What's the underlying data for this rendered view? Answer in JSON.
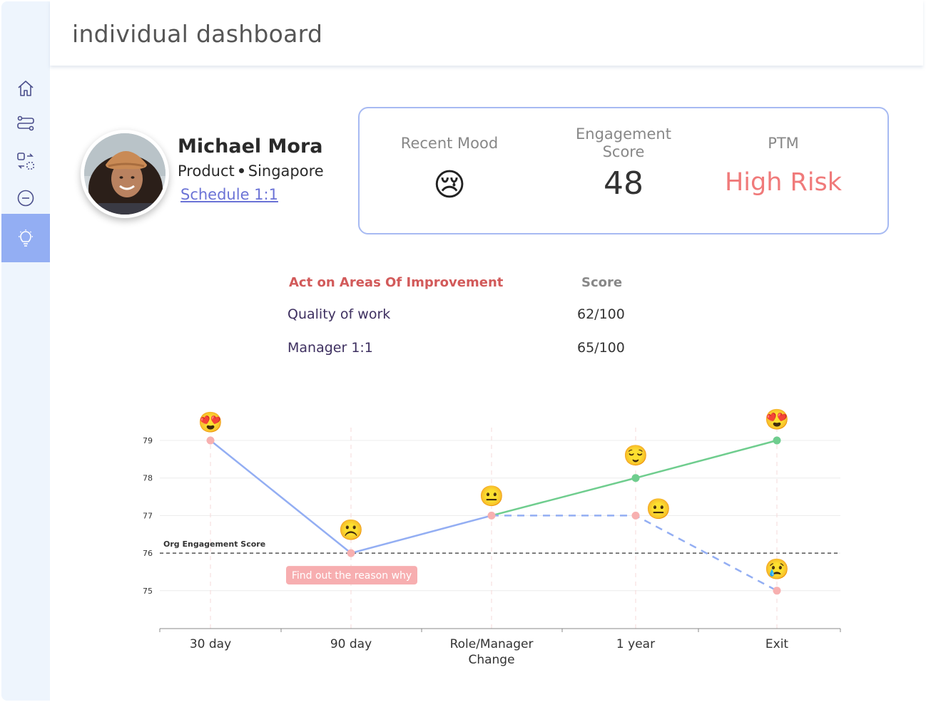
{
  "header": {
    "title": "individual dashboard"
  },
  "sidebar": {
    "items": [
      {
        "icon": "home-icon"
      },
      {
        "icon": "flow-icon"
      },
      {
        "icon": "swap-icon"
      },
      {
        "icon": "minus-circle-icon"
      },
      {
        "icon": "lightbulb-icon",
        "active": true
      }
    ]
  },
  "profile": {
    "name": "Michael Mora",
    "department": "Product",
    "location": "Singapore",
    "schedule_link": "Schedule 1:1"
  },
  "stats": {
    "recent_mood_label": "Recent Mood",
    "recent_mood_emoji": "😢",
    "engagement_label_line1": "Engagement",
    "engagement_label_line2": "Score",
    "engagement_value": "48",
    "ptm_label": "PTM",
    "ptm_value": "High Risk",
    "ptm_color": "#f07a7a"
  },
  "improvement": {
    "header_area": "Act on Areas Of Improvement",
    "header_score": "Score",
    "rows": [
      {
        "area": "Quality of work",
        "score": "62/100"
      },
      {
        "area": "Manager 1:1",
        "score": "65/100"
      }
    ]
  },
  "chart_data": {
    "type": "line",
    "categories": [
      "30 day",
      "90 day",
      "Role/Manager Change",
      "1 year",
      "Exit"
    ],
    "ylim": [
      74,
      80
    ],
    "yticks": [
      75,
      76,
      77,
      78,
      79
    ],
    "reference_line": {
      "label": "Org Engagement Score",
      "value": 76
    },
    "series": [
      {
        "style": "solid",
        "color": "#93aef3",
        "points": [
          [
            0,
            79
          ],
          [
            1,
            76
          ],
          [
            2,
            77
          ]
        ]
      },
      {
        "style": "solid",
        "color": "#6fcd8e",
        "points": [
          [
            2,
            77
          ],
          [
            3,
            78
          ],
          [
            4,
            79
          ]
        ]
      },
      {
        "style": "dashed",
        "color": "#93aef3",
        "points": [
          [
            2,
            77
          ],
          [
            3,
            77
          ],
          [
            4,
            75
          ]
        ]
      }
    ],
    "markers": [
      {
        "x": 0,
        "y": 79,
        "color": "#f7b0b0",
        "emoji": "😍"
      },
      {
        "x": 1,
        "y": 76,
        "color": "#f7b0b0",
        "emoji": "☹️"
      },
      {
        "x": 2,
        "y": 77,
        "color": "#f7b0b0",
        "emoji": "😐"
      },
      {
        "x": 3,
        "y": 78,
        "color": "#6fcd8e",
        "emoji": "😌"
      },
      {
        "x": 3,
        "y": 77,
        "color": "#f7b0b0",
        "emoji": "😐"
      },
      {
        "x": 4,
        "y": 79,
        "color": "#6fcd8e",
        "emoji": "😍"
      },
      {
        "x": 4,
        "y": 75,
        "color": "#f7b0b0",
        "emoji": "😢"
      }
    ],
    "annotation": {
      "text": "Find out the reason why",
      "x": 1,
      "y": 76
    }
  }
}
